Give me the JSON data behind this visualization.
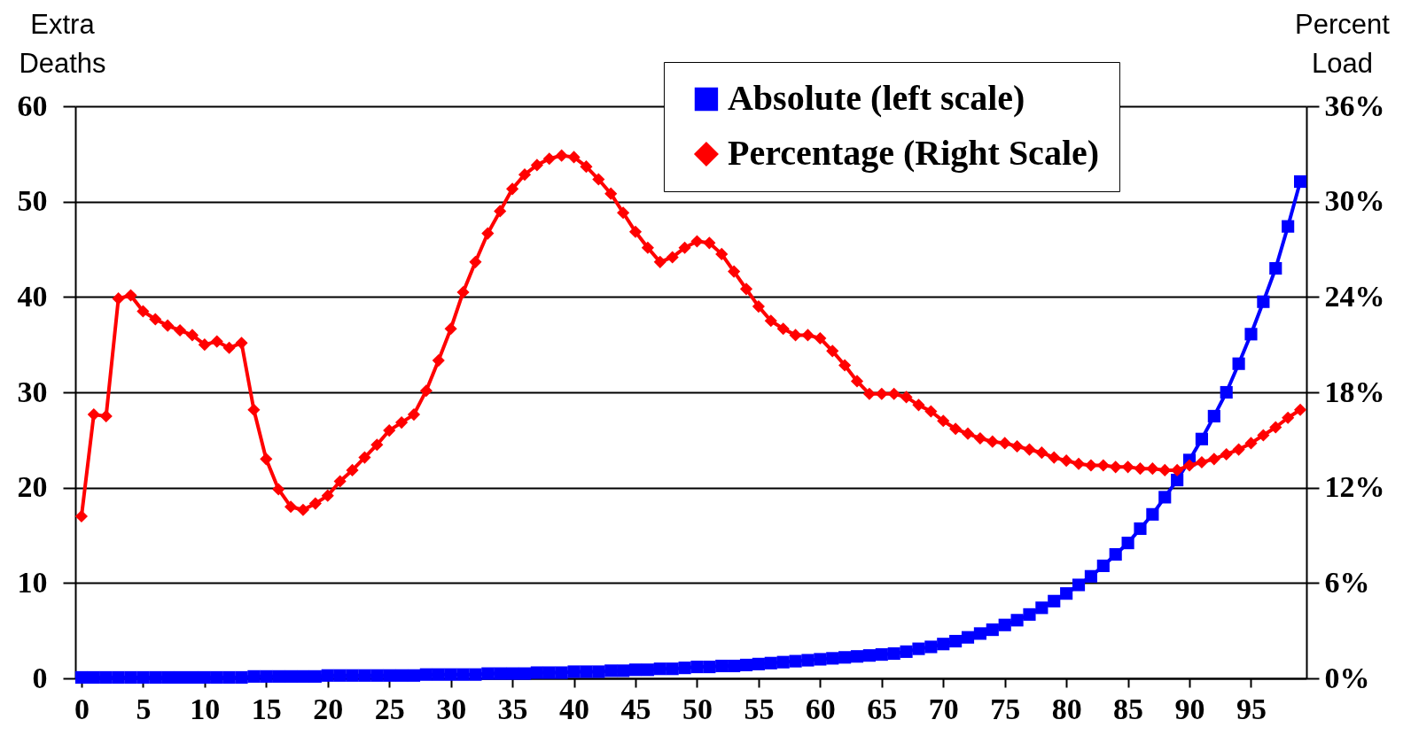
{
  "chart_data": {
    "type": "line",
    "ylabel": "Extra Deaths",
    "y2label": "Percent Load",
    "x": [
      0,
      1,
      2,
      3,
      4,
      5,
      6,
      7,
      8,
      9,
      10,
      11,
      12,
      13,
      14,
      15,
      16,
      17,
      18,
      19,
      20,
      21,
      22,
      23,
      24,
      25,
      26,
      27,
      28,
      29,
      30,
      31,
      32,
      33,
      34,
      35,
      36,
      37,
      38,
      39,
      40,
      41,
      42,
      43,
      44,
      45,
      46,
      47,
      48,
      49,
      50,
      51,
      52,
      53,
      54,
      55,
      56,
      57,
      58,
      59,
      60,
      61,
      62,
      63,
      64,
      65,
      66,
      67,
      68,
      69,
      70,
      71,
      72,
      73,
      74,
      75,
      76,
      77,
      78,
      79,
      80,
      81,
      82,
      83,
      84,
      85,
      86,
      87,
      88,
      89,
      90,
      91,
      92,
      93,
      94,
      95,
      96,
      97,
      98,
      99
    ],
    "xlim": [
      -0.5,
      99.5
    ],
    "xticks": [
      0,
      5,
      10,
      15,
      20,
      25,
      30,
      35,
      40,
      45,
      50,
      55,
      60,
      65,
      70,
      75,
      80,
      85,
      90,
      95
    ],
    "ylim": [
      0,
      60
    ],
    "yticks": [
      0,
      10,
      20,
      30,
      40,
      50,
      60
    ],
    "y2lim": [
      0,
      36
    ],
    "y2ticks": [
      {
        "value": 0,
        "label": "0%"
      },
      {
        "value": 6,
        "label": "6%"
      },
      {
        "value": 12,
        "label": "12%"
      },
      {
        "value": 18,
        "label": "18%"
      },
      {
        "value": 24,
        "label": "24%"
      },
      {
        "value": 30,
        "label": "30%"
      },
      {
        "value": 36,
        "label": "36%"
      }
    ],
    "grid": "y",
    "legend": "top right",
    "series": [
      {
        "name": "Absolute (left scale)",
        "color": "#0000ff",
        "marker": "square",
        "values": [
          0.1,
          0.1,
          0.1,
          0.1,
          0.1,
          0.1,
          0.1,
          0.1,
          0.1,
          0.1,
          0.1,
          0.1,
          0.1,
          0.1,
          0.2,
          0.2,
          0.2,
          0.2,
          0.2,
          0.2,
          0.3,
          0.3,
          0.3,
          0.3,
          0.3,
          0.3,
          0.3,
          0.3,
          0.4,
          0.4,
          0.4,
          0.4,
          0.4,
          0.5,
          0.5,
          0.5,
          0.5,
          0.6,
          0.6,
          0.6,
          0.7,
          0.7,
          0.7,
          0.8,
          0.8,
          0.9,
          0.9,
          1.0,
          1.0,
          1.1,
          1.2,
          1.2,
          1.3,
          1.3,
          1.4,
          1.5,
          1.6,
          1.7,
          1.8,
          1.9,
          2.0,
          2.1,
          2.2,
          2.3,
          2.4,
          2.5,
          2.6,
          2.8,
          3.1,
          3.3,
          3.6,
          3.9,
          4.3,
          4.7,
          5.1,
          5.6,
          6.1,
          6.7,
          7.4,
          8.1,
          8.9,
          9.8,
          10.7,
          11.8,
          13.0,
          14.2,
          15.7,
          17.2,
          19.0,
          20.8,
          22.9,
          25.1,
          27.5,
          30.0,
          33.0,
          36.1,
          39.5,
          43.0,
          47.4,
          52.1
        ]
      },
      {
        "name": "Percentage (Right Scale)",
        "color": "#ff0000",
        "marker": "diamond",
        "axis": "y2",
        "values": [
          10.2,
          16.6,
          16.5,
          23.9,
          24.1,
          23.1,
          22.6,
          22.2,
          21.9,
          21.6,
          21.0,
          21.2,
          20.8,
          21.1,
          16.9,
          13.8,
          11.9,
          10.8,
          10.6,
          11.0,
          11.5,
          12.4,
          13.1,
          13.9,
          14.7,
          15.6,
          16.1,
          16.6,
          18.1,
          20.0,
          22.0,
          24.3,
          26.2,
          28.0,
          29.4,
          30.8,
          31.7,
          32.3,
          32.7,
          32.9,
          32.8,
          32.2,
          31.4,
          30.5,
          29.3,
          28.1,
          27.1,
          26.2,
          26.5,
          27.1,
          27.5,
          27.4,
          26.7,
          25.6,
          24.5,
          23.4,
          22.5,
          22.0,
          21.6,
          21.6,
          21.4,
          20.6,
          19.7,
          18.7,
          17.9,
          17.9,
          17.9,
          17.7,
          17.2,
          16.8,
          16.2,
          15.7,
          15.4,
          15.1,
          14.9,
          14.8,
          14.6,
          14.4,
          14.2,
          13.9,
          13.7,
          13.5,
          13.4,
          13.4,
          13.3,
          13.3,
          13.2,
          13.2,
          13.1,
          13.1,
          13.4,
          13.6,
          13.8,
          14.1,
          14.4,
          14.8,
          15.3,
          15.8,
          16.4,
          16.9
        ]
      }
    ]
  }
}
